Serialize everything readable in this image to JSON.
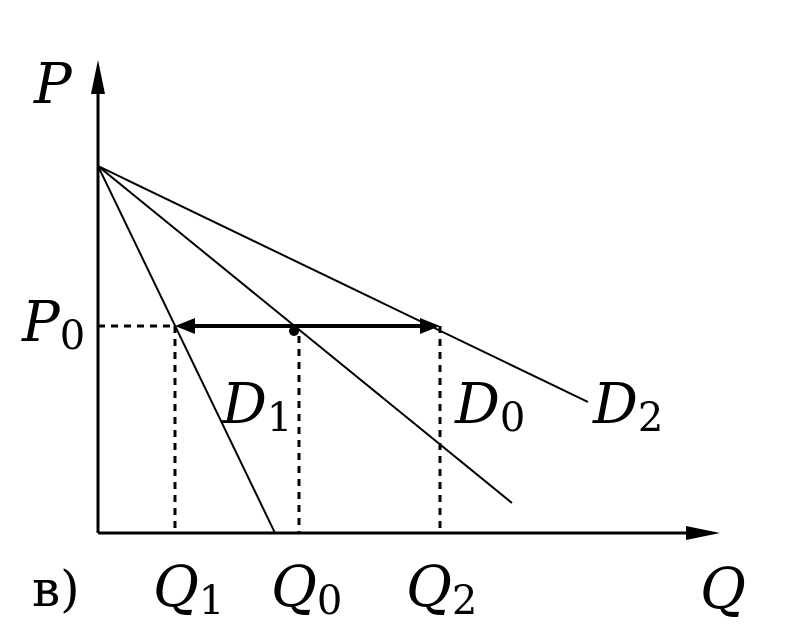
{
  "panel_label": "в)",
  "axes": {
    "y": "P",
    "x": "Q"
  },
  "price_level": {
    "base": "P",
    "sub": "0"
  },
  "quantities": [
    {
      "base": "Q",
      "sub": "1"
    },
    {
      "base": "Q",
      "sub": "0"
    },
    {
      "base": "Q",
      "sub": "2"
    }
  ],
  "curves": [
    {
      "base": "D",
      "sub": "1"
    },
    {
      "base": "D",
      "sub": "0"
    },
    {
      "base": "D",
      "sub": "2"
    }
  ]
}
